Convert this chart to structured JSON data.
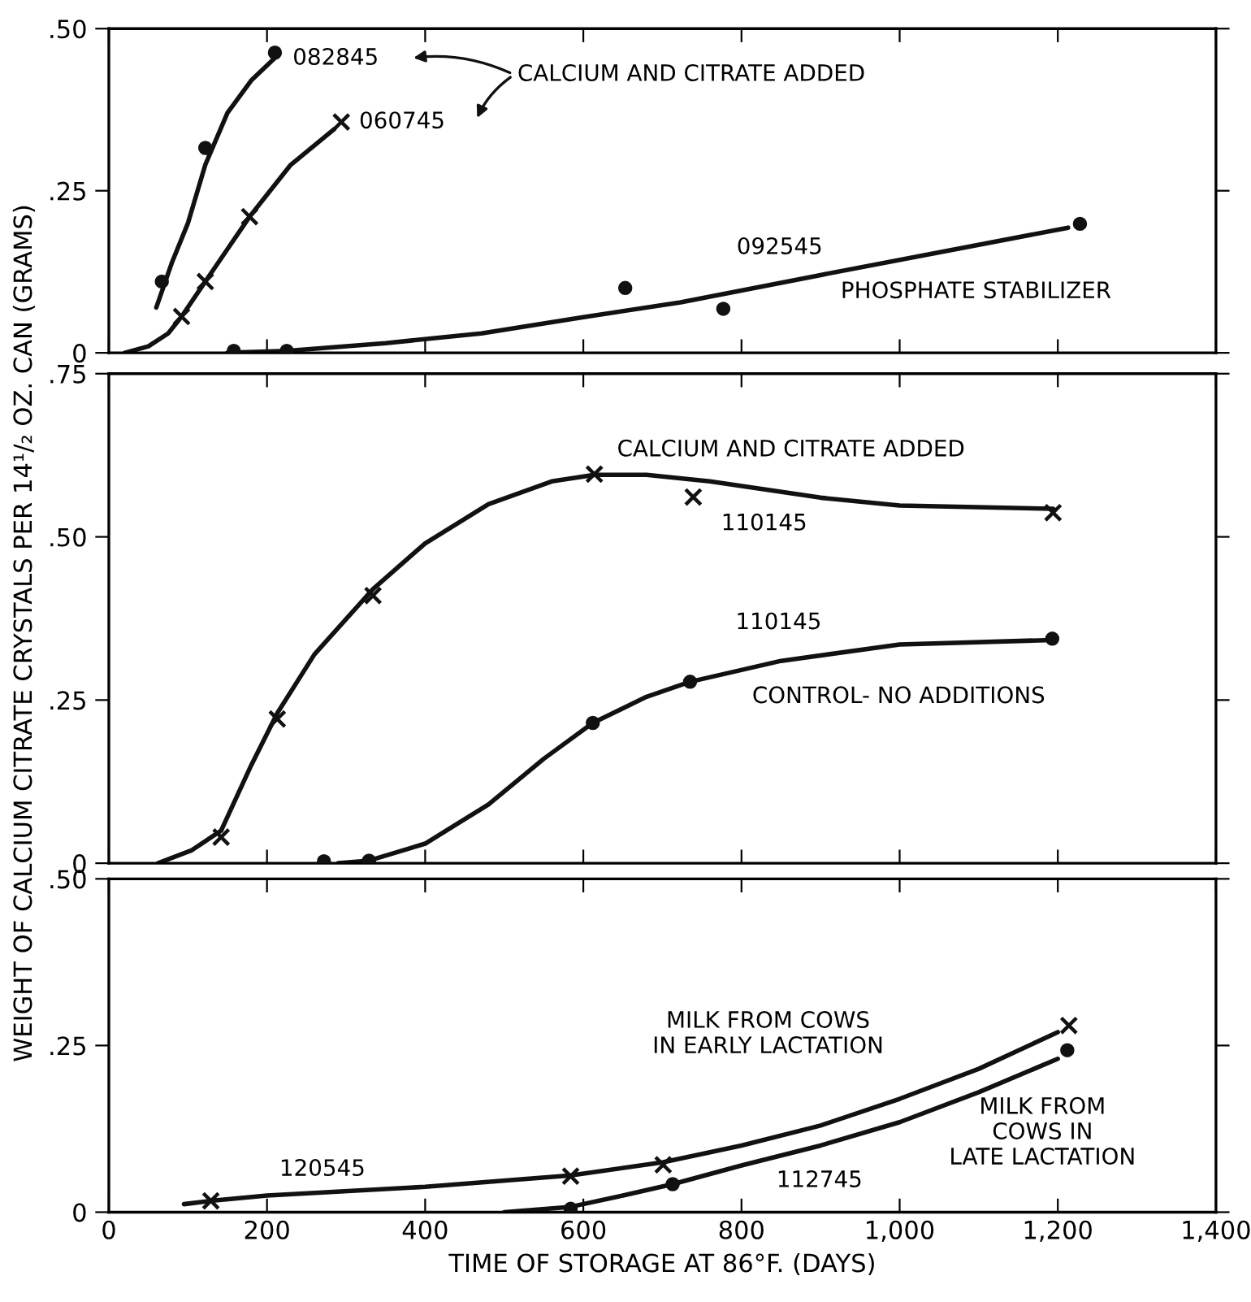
{
  "chart_data": [
    {
      "type": "line",
      "xlim": [
        0,
        1400
      ],
      "xticks": [
        0,
        200,
        400,
        600,
        800,
        1000,
        1200,
        1400
      ],
      "ylim": [
        0,
        0.5
      ],
      "yticks": [
        {
          "value": 0,
          "label": "0"
        },
        {
          "value": 0.25,
          "label": ".25"
        },
        {
          "value": 0.5,
          "label": ".50"
        }
      ],
      "tick_labels": "y",
      "series": [
        {
          "marker": "none",
          "color": "#111111",
          "x": [
            60,
            80,
            100,
            122,
            150,
            180,
            210
          ],
          "values": [
            0.07,
            0.14,
            0.2,
            0.29,
            0.37,
            0.42,
            0.455
          ]
        },
        {
          "type": "scatter",
          "marker": "circle",
          "color": "#111111",
          "x": [
            67,
            122,
            210
          ],
          "values": [
            0.11,
            0.316,
            0.463
          ]
        },
        {
          "marker": "none",
          "color": "#111111",
          "x": [
            20,
            50,
            75,
            92,
            122,
            150,
            178,
            230,
            285
          ],
          "values": [
            0,
            0.01,
            0.03,
            0.056,
            0.11,
            0.16,
            0.21,
            0.29,
            0.345
          ]
        },
        {
          "type": "scatter",
          "marker": "cross",
          "color": "#111111",
          "x": [
            92,
            122,
            178,
            294
          ],
          "values": [
            0.056,
            0.11,
            0.21,
            0.356
          ]
        },
        {
          "marker": "none",
          "color": "#111111",
          "x": [
            150,
            225,
            350,
            471,
            600,
            723,
            900,
            1050,
            1213
          ],
          "values": [
            0,
            0.003,
            0.015,
            0.03,
            0.055,
            0.078,
            0.12,
            0.155,
            0.193
          ]
        },
        {
          "type": "scatter",
          "marker": "circle",
          "color": "#111111",
          "x": [
            158,
            225,
            653,
            777,
            1228
          ],
          "values": [
            0.003,
            0.003,
            0.1,
            0.068,
            0.199
          ]
        }
      ],
      "annotations": [
        "082845",
        "060745",
        "CALCIUM AND CITRATE ADDED",
        "092545",
        "PHOSPHATE STABILIZER"
      ]
    },
    {
      "type": "line",
      "xlim": [
        0,
        1400
      ],
      "xticks": [
        0,
        200,
        400,
        600,
        800,
        1000,
        1200,
        1400
      ],
      "ylim": [
        0,
        0.75
      ],
      "yticks": [
        {
          "value": 0,
          "label": "0"
        },
        {
          "value": 0.25,
          "label": ".25"
        },
        {
          "value": 0.5,
          "label": ".50"
        },
        {
          "value": 0.75,
          "label": ".75"
        }
      ],
      "tick_labels": "y",
      "ylabel": "WEIGHT OF CALCIUM CITRATE CRYSTALS PER 14¹/₂ OZ. CAN (GRAMS)",
      "series": [
        {
          "marker": "none",
          "color": "#111111",
          "x": [
            62,
            105,
            142,
            180,
            213,
            260,
            334,
            400,
            480,
            560,
            614,
            680,
            760,
            900,
            1000,
            1194
          ],
          "values": [
            0,
            0.02,
            0.05,
            0.15,
            0.23,
            0.32,
            0.42,
            0.49,
            0.55,
            0.585,
            0.595,
            0.595,
            0.585,
            0.56,
            0.548,
            0.543
          ]
        },
        {
          "type": "scatter",
          "marker": "cross",
          "color": "#111111",
          "x": [
            142,
            213,
            334,
            614,
            739,
            1194
          ],
          "values": [
            0.04,
            0.221,
            0.41,
            0.596,
            0.561,
            0.537
          ]
        },
        {
          "marker": "none",
          "color": "#111111",
          "x": [
            290,
            329,
            400,
            480,
            550,
            612,
            680,
            735,
            850,
            1000,
            1193
          ],
          "values": [
            0,
            0.004,
            0.03,
            0.09,
            0.16,
            0.215,
            0.255,
            0.278,
            0.31,
            0.335,
            0.342
          ]
        },
        {
          "type": "scatter",
          "marker": "circle",
          "color": "#111111",
          "x": [
            272,
            329,
            612,
            735,
            1193
          ],
          "values": [
            0.003,
            0.004,
            0.215,
            0.278,
            0.344
          ]
        }
      ],
      "annotations": [
        "CALCIUM AND CITRATE ADDED",
        "110145",
        "110145",
        "CONTROL- NO ADDITIONS"
      ]
    },
    {
      "type": "line",
      "xlim": [
        0,
        1400
      ],
      "xticks": [
        0,
        200,
        400,
        600,
        800,
        {
          "value": 1000,
          "label": "1,000"
        },
        {
          "value": 1200,
          "label": "1,200"
        },
        {
          "value": 1400,
          "label": "1,400"
        }
      ],
      "ylim": [
        0,
        0.5
      ],
      "yticks": [
        {
          "value": 0,
          "label": "0"
        },
        {
          "value": 0.25,
          "label": ".25"
        },
        {
          "value": 0.5,
          "label": ".50"
        }
      ],
      "xlabel": "TIME OF STORAGE AT 86°F. (DAYS)",
      "series": [
        {
          "marker": "none",
          "color": "#111111",
          "x": [
            95,
            129,
            200,
            400,
            584,
            701,
            800,
            900,
            1000,
            1100,
            1200
          ],
          "values": [
            0.012,
            0.017,
            0.025,
            0.038,
            0.055,
            0.075,
            0.1,
            0.13,
            0.17,
            0.215,
            0.27
          ]
        },
        {
          "type": "scatter",
          "marker": "cross",
          "color": "#111111",
          "x": [
            129,
            584,
            701,
            1214
          ],
          "values": [
            0.017,
            0.054,
            0.071,
            0.28
          ]
        },
        {
          "marker": "none",
          "color": "#111111",
          "x": [
            500,
            584,
            650,
            713,
            800,
            900,
            1000,
            1100,
            1200
          ],
          "values": [
            0,
            0.008,
            0.025,
            0.042,
            0.07,
            0.1,
            0.135,
            0.18,
            0.23
          ]
        },
        {
          "type": "scatter",
          "marker": "circle",
          "color": "#111111",
          "x": [
            584,
            713,
            1212
          ],
          "values": [
            0.005,
            0.042,
            0.243
          ]
        }
      ],
      "annotations": [
        "MILK FROM COWS\nIN EARLY LACTATION",
        "120545",
        "112745",
        "MILK FROM\nCOWS IN\nLATE LACTATION"
      ]
    }
  ]
}
